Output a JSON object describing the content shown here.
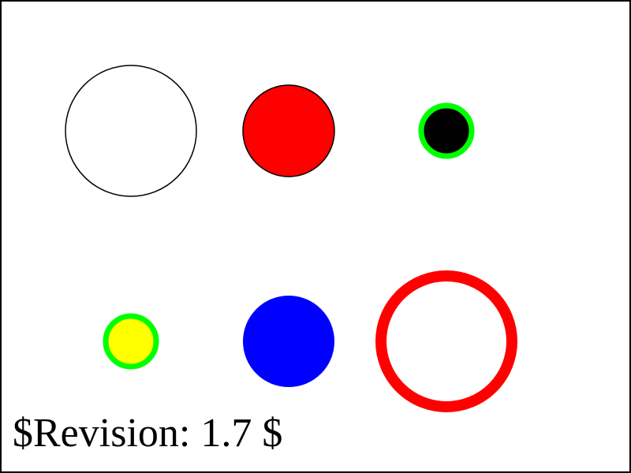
{
  "revision_text": "$Revision: 1.7 $",
  "shapes": [
    {
      "name": "white-circle-black-outline",
      "fill": "#ffffff",
      "stroke": "#000000"
    },
    {
      "name": "red-circle-black-outline",
      "fill": "#ff0000",
      "stroke": "#000000"
    },
    {
      "name": "black-circle-green-outline",
      "fill": "#000000",
      "stroke": "#00ff00"
    },
    {
      "name": "yellow-circle-green-outline",
      "fill": "#ffff00",
      "stroke": "#00ff00"
    },
    {
      "name": "blue-circle",
      "fill": "#0000ff",
      "stroke": "none"
    },
    {
      "name": "red-ring",
      "fill": "none",
      "stroke": "#ff0000"
    }
  ]
}
